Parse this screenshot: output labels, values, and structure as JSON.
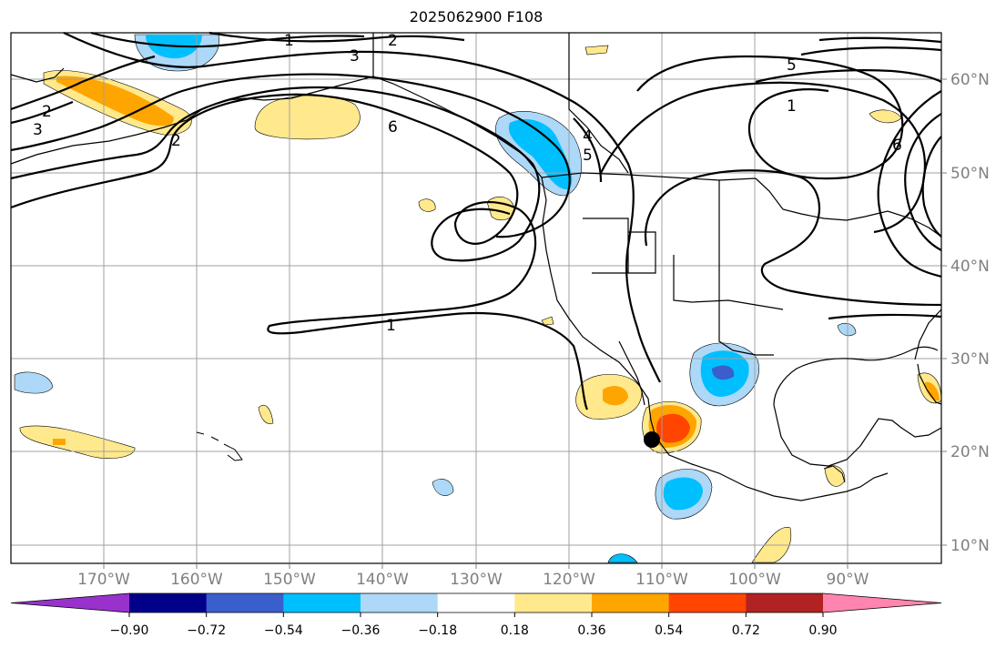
{
  "title": "2025062900 F108",
  "map": {
    "lat_labels": [
      "60°N",
      "50°N",
      "40°N",
      "30°N",
      "20°N",
      "10°N"
    ],
    "lon_labels": [
      "170°W",
      "160°W",
      "150°W",
      "140°W",
      "130°W",
      "120°W",
      "110°W",
      "100°W",
      "90°W"
    ],
    "contour_labels": [
      "1",
      "2",
      "3",
      "5",
      "1",
      "6",
      "2",
      "3",
      "4",
      "5",
      "6",
      "1",
      "2"
    ]
  },
  "colorbar": {
    "ticks": [
      "−0.90",
      "−0.72",
      "−0.54",
      "−0.36",
      "−0.18",
      "0.18",
      "0.36",
      "0.54",
      "0.72",
      "0.90"
    ],
    "colors": [
      "#9932cc",
      "#00008b",
      "#3a5fcd",
      "#00bfff",
      "#add8f7",
      "#ffffff",
      "#ffe98c",
      "#ffa500",
      "#ff4500",
      "#b22222",
      "#ff85b0"
    ]
  },
  "colors": {
    "grid": "#a0a0a0",
    "contour": "#000000",
    "coast": "#000000",
    "marker": "#000000"
  }
}
